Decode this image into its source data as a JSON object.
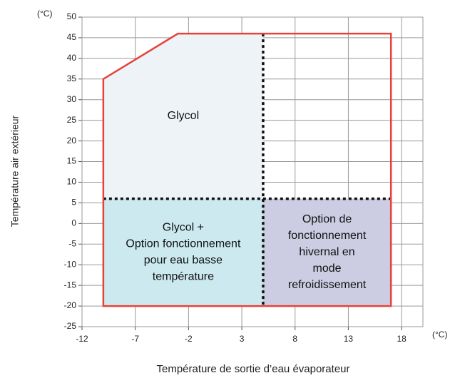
{
  "chart_data": {
    "type": "envelope",
    "x_label": "Température de sortie d’eau évaporateur",
    "y_label": "Température air extérieur",
    "x_unit": "(°C)",
    "y_unit": "(°C)",
    "xlim": [
      -12,
      20
    ],
    "ylim": [
      -25,
      50
    ],
    "xticks": [
      -12,
      -7,
      -2,
      3,
      8,
      13,
      18
    ],
    "yticks": [
      -25,
      -20,
      -15,
      -10,
      -5,
      0,
      5,
      10,
      15,
      20,
      25,
      30,
      35,
      40,
      45,
      50
    ],
    "grid": true,
    "envelope": {
      "color": "#e8413a",
      "x": [
        -10,
        -10,
        -3,
        17,
        17
      ],
      "y": [
        -20,
        35,
        46,
        46,
        -20
      ]
    },
    "dividers": {
      "x": 5,
      "y": 6
    },
    "regions": [
      {
        "label_lines": [
          "Glycol"
        ],
        "color": "#eef3f8",
        "x": [
          -10,
          -10,
          -3,
          5,
          5
        ],
        "y": [
          6,
          35,
          46,
          46,
          6
        ]
      },
      {
        "label_lines": [
          "Glycol +",
          "Option fonctionnement",
          "pour eau basse",
          "température"
        ],
        "color": "#cbe9ef",
        "x": [
          -10,
          -10,
          5,
          5
        ],
        "y": [
          -20,
          6,
          6,
          -20
        ]
      },
      {
        "label_lines": [
          "Option de",
          "fonctionnement",
          "hivernal en",
          "mode",
          "refroidissement"
        ],
        "color": "#cccce2",
        "x": [
          5,
          5,
          17,
          17
        ],
        "y": [
          -20,
          6,
          6,
          -20
        ]
      }
    ]
  }
}
